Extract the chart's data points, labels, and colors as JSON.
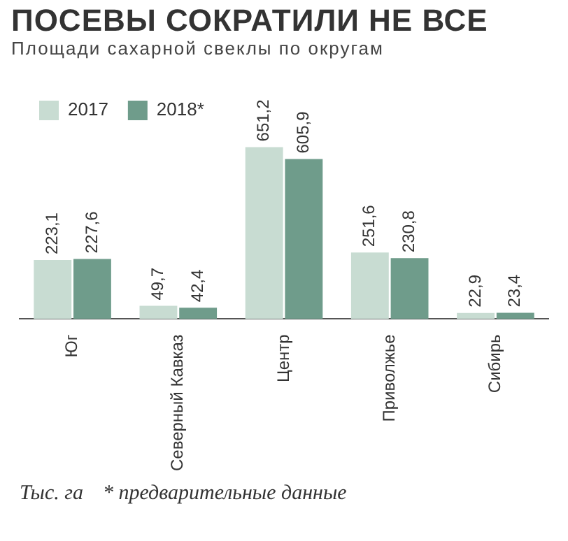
{
  "chart_data": {
    "type": "bar",
    "title": "ПОСЕВЫ СОКРАТИЛИ НЕ ВСЕ",
    "subtitle": "Площади сахарной свеклы по округам",
    "categories": [
      "Юг",
      "Северный Кавказ",
      "Центр",
      "Приволжье",
      "Сибирь"
    ],
    "series": [
      {
        "name": "2017",
        "color": "#c8dcd2",
        "values": [
          223.1,
          49.7,
          651.2,
          251.6,
          22.9
        ],
        "value_labels": [
          "223,1",
          "49,7",
          "651,2",
          "251,6",
          "22,9"
        ]
      },
      {
        "name": "2018*",
        "color": "#6f9c8b",
        "values": [
          227.6,
          42.4,
          605.9,
          230.8,
          23.4
        ],
        "value_labels": [
          "227,6",
          "42,4",
          "605,9",
          "230,8",
          "23,4"
        ]
      }
    ],
    "legend": "top left",
    "grid": false,
    "annotations": [
      "Тыс. га",
      "* предварительные данные"
    ]
  }
}
